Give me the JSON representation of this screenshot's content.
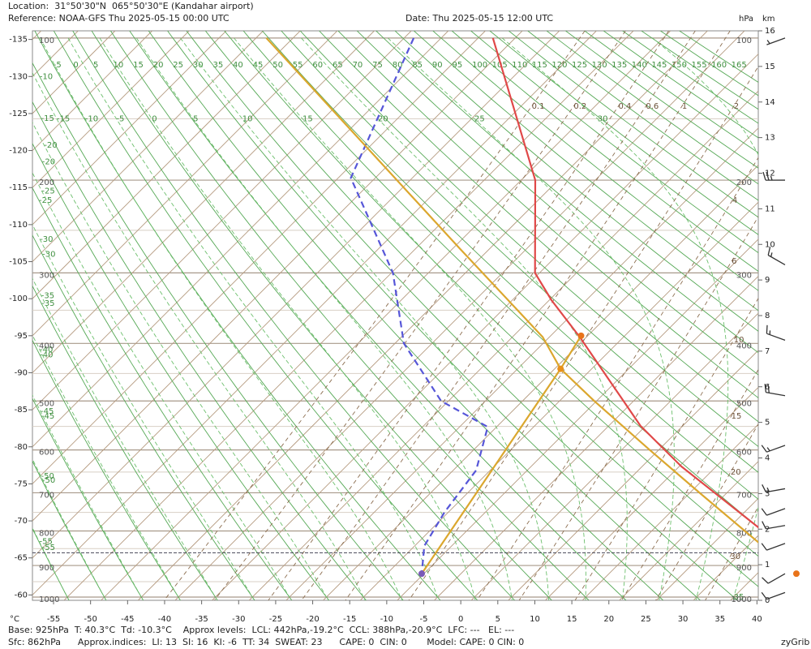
{
  "chart_data": {
    "type": "skew-t",
    "header": {
      "location": "Location:  31°50'30\"N  065°50'30\"E (Kandahar airport)",
      "reference": "Reference: NOAA-GFS Thu 2025-05-15 00:00 UTC",
      "date": "Date: Thu 2025-05-15 12:00 UTC"
    },
    "footer": {
      "line1": "Base: 925hPa  T: 40.3°C  Td: -10.3°C    Approx levels:  LCL: 442hPa,-19.2°C  CCL: 388hPa,-20.9°C  LFC: ---   EL: ---",
      "line2": "Sfc: 862hPa      Approx.indices:  LI: 13  SI: 16  KI: -6  TT: 34  SWEAT: 23      CAPE: 0  CIN: 0       Model: CAPE: 0 CIN: 0",
      "credit": "zyGrib"
    },
    "xlabel": "°C",
    "pressure_unit": "hPa",
    "height_unit": "km",
    "xlim": [
      -57.85,
      40.18
    ],
    "xticks": [
      -55,
      -50,
      -45,
      -40,
      -35,
      -30,
      -25,
      -20,
      -15,
      -10,
      -5,
      0,
      5,
      10,
      15,
      20,
      25,
      30,
      35,
      40
    ],
    "isotherm_labels": [
      -135,
      -130,
      -125,
      -120,
      -115,
      -110,
      -105,
      -100,
      -95,
      -90,
      -85,
      -80,
      -75,
      -70,
      -65,
      -60
    ],
    "plim": [
      96.3,
      1010.7
    ],
    "pressure_ticks": [
      100,
      200,
      300,
      400,
      500,
      600,
      700,
      800,
      900,
      1000
    ],
    "minor_isobars": [
      150,
      250,
      350,
      450,
      550,
      650,
      750,
      850,
      950
    ],
    "kmlim": [
      0,
      16
    ],
    "km_ticks": [
      0,
      1,
      2,
      3,
      4,
      5,
      6,
      7,
      8,
      9,
      10,
      11,
      12,
      13,
      14,
      15,
      16
    ],
    "dry_adiabats": [
      -55,
      -50,
      -45,
      -40,
      -35,
      -30,
      -25,
      -20,
      -15,
      -10,
      -5,
      0,
      5,
      10,
      15,
      20,
      25,
      30,
      35,
      40,
      45,
      50,
      55,
      60,
      65,
      70,
      75,
      80,
      85,
      90,
      95,
      100,
      105,
      110,
      115,
      120,
      125,
      130,
      135,
      140,
      145,
      150,
      155,
      160,
      165
    ],
    "moist_adiabats": [
      -55,
      -50,
      -45,
      -40,
      -35,
      -30,
      -25,
      -20,
      -15,
      -10,
      -5,
      0,
      5,
      10,
      15,
      20,
      25,
      30,
      35
    ],
    "mixing_ratios": [
      0.1,
      0.2,
      0.4,
      0.6,
      1,
      2,
      4,
      6,
      10,
      15,
      20,
      30
    ],
    "surface_pressure": 862,
    "series": [
      {
        "color": "#e04848",
        "dashed": false,
        "pressure": [
          100,
          200,
          300,
          336,
          390,
          549,
          637,
          790,
          925
        ],
        "values": [
          -73.0,
          -48.1,
          -35.6,
          -29.7,
          -20.9,
          -0.7,
          10.3,
          28.9,
          40.3
        ]
      },
      {
        "color": "#5656d8",
        "dashed": true,
        "pressure": [
          100,
          198,
          300,
          400,
          500,
          551,
          646,
          750,
          842,
          925
        ],
        "values": [
          -83.7,
          -73.3,
          -54.8,
          -43.8,
          -31.0,
          -21.2,
          -16.9,
          -15.5,
          -13.7,
          -10.3
        ]
      },
      {
        "color": "#dba72e",
        "dashed": false,
        "pressure": [
          925,
          850,
          700,
          600,
          500,
          442,
          390,
          269,
          100
        ],
        "values": [
          40.3,
          32.8,
          16.3,
          3.8,
          -10.3,
          -19.2,
          -25.9,
          -49.4,
          -103.6
        ]
      },
      {
        "color": "#dba72e",
        "dashed": false,
        "pressure": [
          925,
          442,
          388
        ],
        "values": [
          -10.3,
          -19.2,
          -20.9
        ]
      }
    ],
    "markers": [
      {
        "p": 925,
        "t": 40.3,
        "color": "#e8731a"
      },
      {
        "p": 442,
        "t": -19.2,
        "color": "#e8901a"
      },
      {
        "p": 388,
        "t": -20.9,
        "color": "#e8731a"
      },
      {
        "p": 925,
        "t": -10.3,
        "color": "#7a5ab8"
      }
    ],
    "wind": {
      "pressure": [
        100,
        200,
        290,
        395,
        490,
        590,
        690,
        740,
        785,
        835,
        925,
        985
      ],
      "speed": [
        5,
        25,
        15,
        15,
        20,
        15,
        15,
        10,
        10,
        10,
        10,
        10
      ],
      "direction": [
        250,
        270,
        300,
        290,
        280,
        250,
        260,
        250,
        260,
        250,
        240,
        250
      ]
    }
  }
}
